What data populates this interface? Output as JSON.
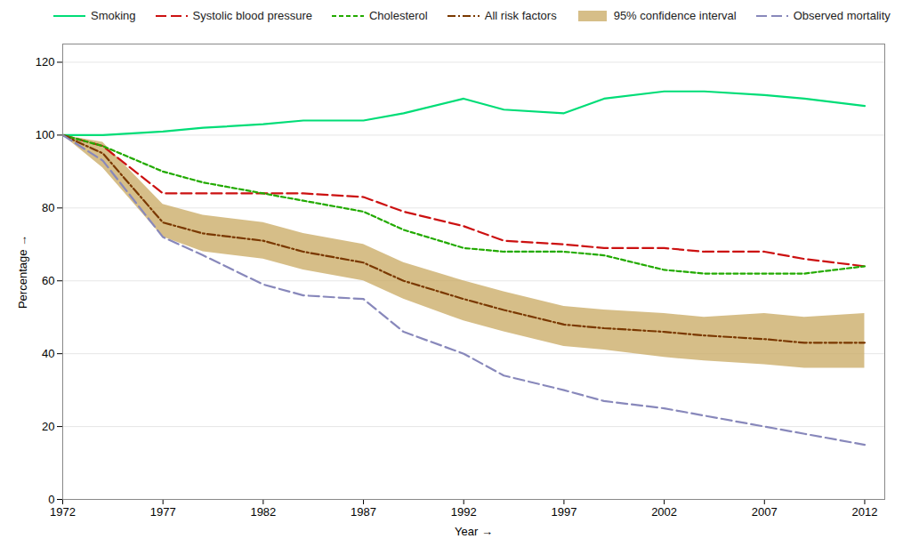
{
  "chart_data": {
    "type": "line",
    "xlabel": "Year",
    "ylabel": "Percentage",
    "x": [
      1972,
      1974,
      1977,
      1979,
      1982,
      1984,
      1987,
      1989,
      1992,
      1994,
      1997,
      1999,
      2002,
      2004,
      2007,
      2009,
      2012
    ],
    "series": [
      {
        "name": "Smoking",
        "color": "#00dd77",
        "line_style": "solid",
        "values": [
          100,
          100,
          101,
          102,
          103,
          104,
          104,
          106,
          110,
          107,
          106,
          110,
          112,
          112,
          111,
          110,
          108
        ]
      },
      {
        "name": "Systolic blood pressure",
        "color": "#cc1111",
        "line_style": "dashed_large",
        "values": [
          100,
          97,
          84,
          84,
          84,
          84,
          83,
          79,
          75,
          71,
          70,
          69,
          69,
          68,
          68,
          66,
          64
        ]
      },
      {
        "name": "Cholesterol",
        "color": "#22aa00",
        "line_style": "dashed_small",
        "values": [
          100,
          97,
          90,
          87,
          84,
          82,
          79,
          74,
          69,
          68,
          68,
          67,
          63,
          62,
          62,
          62,
          64
        ]
      },
      {
        "name": "All risk factors",
        "color": "#7a3800",
        "line_style": "dashdot",
        "values": [
          100,
          95,
          76,
          73,
          71,
          68,
          65,
          60,
          55,
          52,
          48,
          47,
          46,
          45,
          44,
          43,
          43
        ]
      },
      {
        "name": "95% confidence interval",
        "type": "band",
        "color": "#c8a860",
        "lower": [
          100,
          91,
          72,
          68,
          66,
          63,
          60,
          55,
          49,
          46,
          42,
          41,
          39,
          38,
          37,
          36,
          36
        ],
        "upper": [
          100,
          98,
          81,
          78,
          76,
          73,
          70,
          65,
          60,
          57,
          53,
          52,
          51,
          50,
          51,
          50,
          51
        ]
      },
      {
        "name": "Observed mortality",
        "color": "#8888bb",
        "line_style": "dashed_large",
        "values": [
          100,
          93,
          72,
          67,
          59,
          56,
          55,
          46,
          40,
          34,
          30,
          27,
          25,
          23,
          20,
          18,
          15
        ]
      }
    ],
    "xlim": [
      1972,
      2013
    ],
    "xticks": [
      1972,
      1977,
      1982,
      1987,
      1992,
      1997,
      2002,
      2007,
      2012
    ],
    "ylim": [
      0,
      125
    ],
    "yticks": [
      0,
      20,
      40,
      60,
      80,
      100,
      120
    ],
    "grid": "y"
  }
}
